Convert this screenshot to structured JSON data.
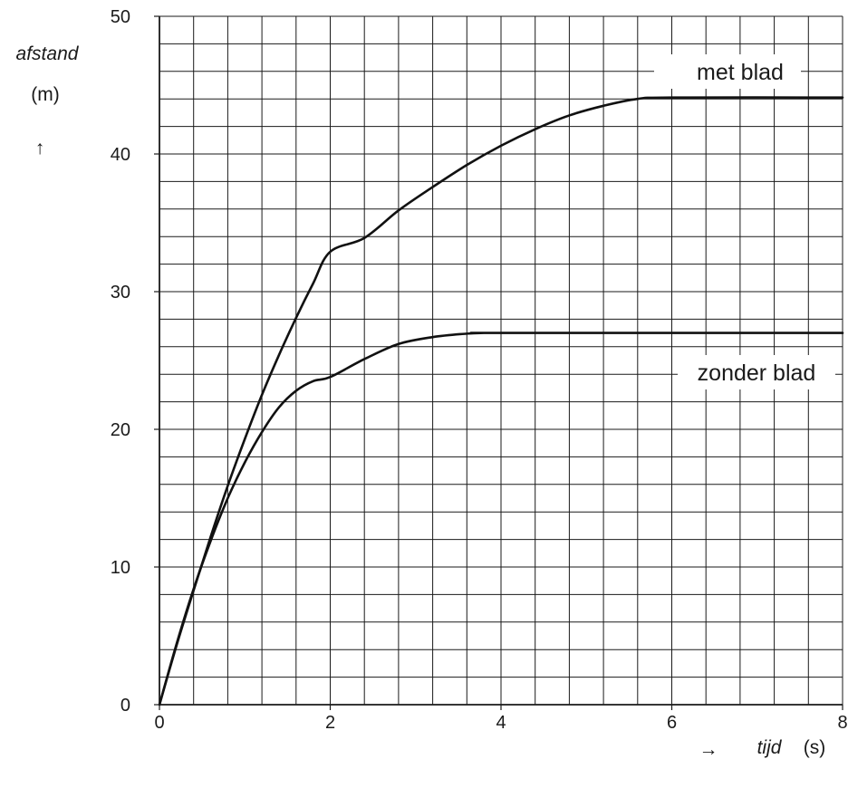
{
  "chart_data": {
    "type": "line",
    "ylabel": "afstand",
    "yunit": "(m)",
    "y_arrow": "↑",
    "xlabel": "tijd",
    "xunit": "(s)",
    "x_arrow": "→",
    "xlim": [
      0,
      8
    ],
    "ylim": [
      0,
      50
    ],
    "x_ticks": [
      0,
      2,
      4,
      6,
      8
    ],
    "y_ticks": [
      0,
      10,
      20,
      30,
      40,
      50
    ],
    "grid": true,
    "grid_minor_x": 0.4,
    "grid_minor_y": 2,
    "series": [
      {
        "name": "met blad",
        "x": [
          0,
          0.2,
          0.4,
          0.6,
          0.8,
          1.0,
          1.2,
          1.4,
          1.6,
          1.8,
          2.0,
          2.4,
          2.8,
          3.2,
          3.6,
          4.0,
          4.4,
          4.8,
          5.2,
          5.6,
          6.0,
          8.0
        ],
        "y": [
          0,
          4.3,
          8.3,
          12.2,
          15.9,
          19.3,
          22.5,
          25.4,
          28.1,
          30.6,
          32.9,
          33.9,
          35.9,
          37.6,
          39.2,
          40.6,
          41.8,
          42.8,
          43.5,
          44.0,
          44.1,
          44.1
        ]
      },
      {
        "name": "zonder blad",
        "x": [
          0,
          0.2,
          0.4,
          0.6,
          0.8,
          1.0,
          1.2,
          1.4,
          1.6,
          1.8,
          2.0,
          2.4,
          2.8,
          3.2,
          3.6,
          3.8,
          4.0,
          8.0
        ],
        "y": [
          0,
          4.4,
          8.4,
          11.9,
          15.0,
          17.6,
          19.8,
          21.6,
          22.8,
          23.5,
          23.8,
          25.1,
          26.2,
          26.7,
          26.95,
          27.0,
          27.0,
          27.0
        ]
      }
    ]
  }
}
